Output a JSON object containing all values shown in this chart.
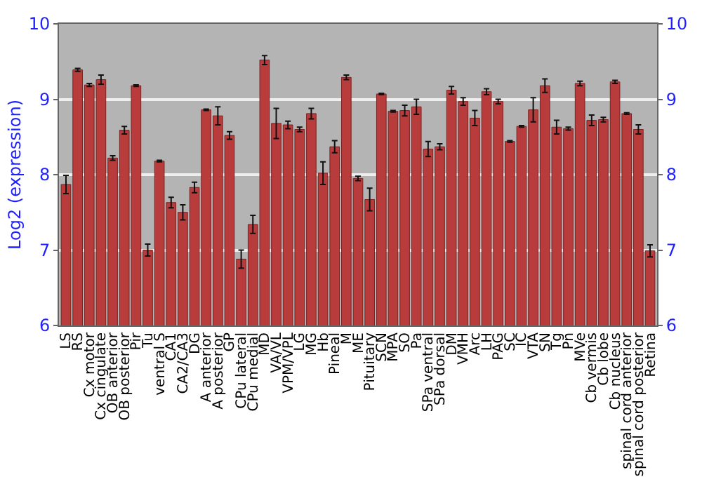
{
  "chart_data": {
    "type": "bar",
    "ylabel": "Log2 (expression)",
    "categories": [
      "LS",
      "RS",
      "Cx motor",
      "Cx cingulate",
      "OB anterior",
      "OB posterior",
      "Pir",
      "Tu",
      "ventral S",
      "CA1",
      "CA2/CA3",
      "DG",
      "A anterior",
      "A posterior",
      "GP",
      "CPu lateral",
      "CPu medial",
      "MD",
      "VA/VL",
      "VPM/VPL",
      "LG",
      "MG",
      "Hb",
      "Pineal",
      "M",
      "ME",
      "Pituitary",
      "SCN",
      "MPA",
      "SO",
      "Pa",
      "SPa ventral",
      "SPa dorsal",
      "DM",
      "VMH",
      "Arc",
      "LH",
      "PAG",
      "SC",
      "IC",
      "VTA",
      "SN",
      "Tg",
      "Pn",
      "MVe",
      "Cb vermis",
      "Cb lobe",
      "Cb nucleus",
      "spinal cord anterior",
      "spinal cord posterior",
      "Retina"
    ],
    "values": [
      7.87,
      9.39,
      9.19,
      9.26,
      8.22,
      8.59,
      9.18,
      7.0,
      8.18,
      7.63,
      7.5,
      7.83,
      8.86,
      8.78,
      8.52,
      6.88,
      7.34,
      9.52,
      8.68,
      8.66,
      8.6,
      8.81,
      8.02,
      8.37,
      9.29,
      7.95,
      7.67,
      9.07,
      8.84,
      8.85,
      8.9,
      8.34,
      8.37,
      9.12,
      8.97,
      8.75,
      9.1,
      8.97,
      8.44,
      8.64,
      8.86,
      9.18,
      8.63,
      8.61,
      9.21,
      8.72,
      8.73,
      9.23,
      8.81,
      8.6,
      6.99
    ],
    "errors": [
      0.12,
      0.02,
      0.02,
      0.06,
      0.03,
      0.05,
      0.01,
      0.08,
      0.01,
      0.07,
      0.1,
      0.07,
      0.01,
      0.12,
      0.05,
      0.12,
      0.12,
      0.06,
      0.2,
      0.05,
      0.03,
      0.07,
      0.15,
      0.08,
      0.03,
      0.03,
      0.15,
      0.01,
      0.01,
      0.07,
      0.1,
      0.1,
      0.04,
      0.05,
      0.05,
      0.1,
      0.04,
      0.03,
      0.01,
      0.01,
      0.16,
      0.09,
      0.09,
      0.02,
      0.03,
      0.07,
      0.03,
      0.02,
      0.01,
      0.06,
      0.08
    ],
    "color": "#b83c3c",
    "ylim": [
      6,
      10
    ],
    "yticks": [
      6,
      7,
      8,
      9,
      10
    ],
    "y2lim": [
      6,
      10
    ],
    "y2ticks": [
      6,
      7,
      8,
      9,
      10
    ],
    "grid": "y"
  }
}
